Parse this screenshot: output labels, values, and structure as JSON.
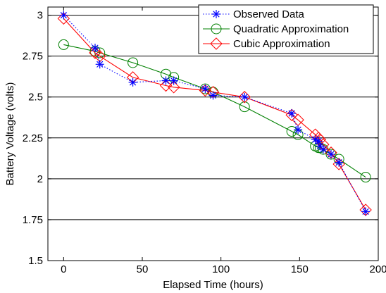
{
  "chart_data": {
    "type": "line",
    "title": "",
    "xlabel": "Elapsed Time (hours)",
    "ylabel": "Battery Voltage (volts)",
    "xlim": [
      -10,
      200
    ],
    "ylim": [
      1.5,
      3.05
    ],
    "xticks": [
      0,
      50,
      100,
      150,
      200
    ],
    "xtick_labels": [
      "0",
      "50",
      "100",
      "150",
      "200"
    ],
    "yticks": [
      1.5,
      1.75,
      2,
      2.25,
      2.5,
      2.75,
      3
    ],
    "ytick_labels": [
      "1.5",
      "1.75",
      "2",
      "2.25",
      "2.5",
      "2.75",
      "3"
    ],
    "grid": "horizontal",
    "legend_position": "top-right",
    "series": [
      {
        "name": "Observed Data",
        "color": "#0000ff",
        "line": "dotted",
        "marker": "asterisk",
        "x": [
          0,
          20,
          23,
          44,
          65,
          70,
          90,
          95,
          115,
          145,
          149,
          160,
          162,
          163,
          165,
          170,
          175,
          192
        ],
        "y": [
          3.0,
          2.8,
          2.7,
          2.59,
          2.6,
          2.6,
          2.55,
          2.51,
          2.5,
          2.4,
          2.3,
          2.24,
          2.23,
          2.2,
          2.18,
          2.15,
          2.1,
          1.8
        ]
      },
      {
        "name": "Quadratic Approximation",
        "color": "#008000",
        "line": "solid",
        "marker": "circle",
        "x": [
          0,
          20,
          23,
          44,
          65,
          70,
          90,
          95,
          115,
          145,
          149,
          160,
          162,
          163,
          165,
          170,
          175,
          192
        ],
        "y": [
          2.82,
          2.78,
          2.77,
          2.71,
          2.64,
          2.62,
          2.55,
          2.53,
          2.44,
          2.29,
          2.27,
          2.2,
          2.19,
          2.19,
          2.18,
          2.15,
          2.12,
          2.01
        ]
      },
      {
        "name": "Cubic Approximation",
        "color": "#ff0000",
        "line": "solid",
        "marker": "diamond",
        "x": [
          0,
          20,
          23,
          44,
          65,
          70,
          90,
          95,
          115,
          145,
          149,
          160,
          162,
          163,
          165,
          170,
          175,
          192
        ],
        "y": [
          2.98,
          2.77,
          2.75,
          2.62,
          2.57,
          2.56,
          2.54,
          2.53,
          2.5,
          2.39,
          2.36,
          2.27,
          2.25,
          2.24,
          2.21,
          2.16,
          2.09,
          1.81
        ]
      }
    ]
  }
}
